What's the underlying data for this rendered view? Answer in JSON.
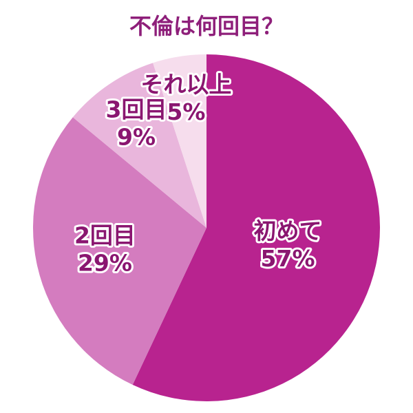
{
  "chart_data": {
    "type": "pie",
    "title": "不倫は何回目？",
    "categories": [
      "初めて",
      "2回目",
      "3回目",
      "それ以上"
    ],
    "values": [
      57,
      29,
      9,
      5
    ],
    "value_labels": [
      "57%",
      "29%",
      "9%",
      "5%"
    ],
    "colors": [
      "#b8238f",
      "#d47cbf",
      "#e9b6dc",
      "#f6dded"
    ]
  }
}
